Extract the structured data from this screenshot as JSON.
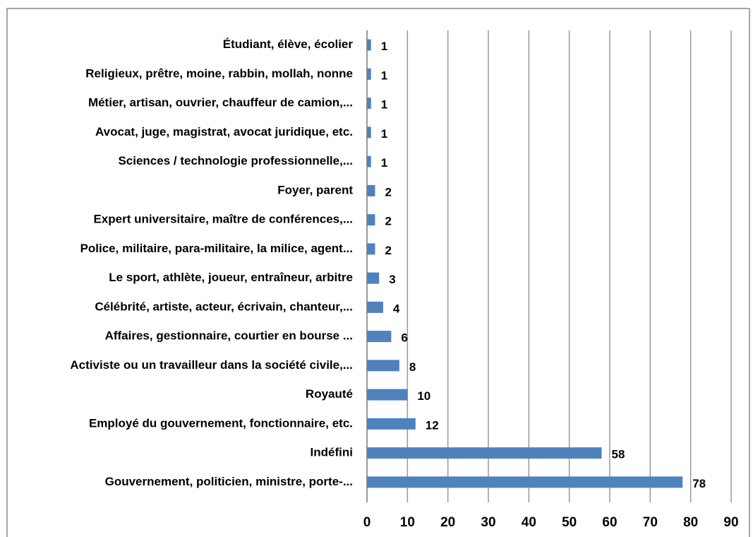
{
  "chart_data": {
    "type": "bar",
    "orientation": "horizontal",
    "categories": [
      "Étudiant, élève, écolier",
      "Religieux, prêtre, moine, rabbin, mollah, nonne",
      "Métier, artisan, ouvrier, chauffeur de camion,...",
      "Avocat, juge, magistrat, avocat juridique, etc.",
      "Sciences / technologie professionnelle,...",
      "Foyer, parent",
      "Expert universitaire, maître de conférences,...",
      "Police, militaire, para-militaire, la milice, agent...",
      "Le sport, athlète, joueur, entraîneur, arbitre",
      "Célébrité, artiste, acteur, écrivain, chanteur,...",
      "Affaires, gestionnaire, courtier en bourse ...",
      "Activiste ou un travailleur dans la société civile,...",
      "Royauté",
      "Employé du gouvernement, fonctionnaire, etc.",
      "Indéfini",
      "Gouvernement, politicien, ministre, porte-..."
    ],
    "values": [
      1,
      1,
      1,
      1,
      1,
      2,
      2,
      2,
      3,
      4,
      6,
      8,
      10,
      12,
      58,
      78
    ],
    "color": "#4f81bd",
    "xlim": [
      0,
      90
    ],
    "xticks": [
      0,
      10,
      20,
      30,
      40,
      50,
      60,
      70,
      80,
      90
    ],
    "grid": true
  }
}
